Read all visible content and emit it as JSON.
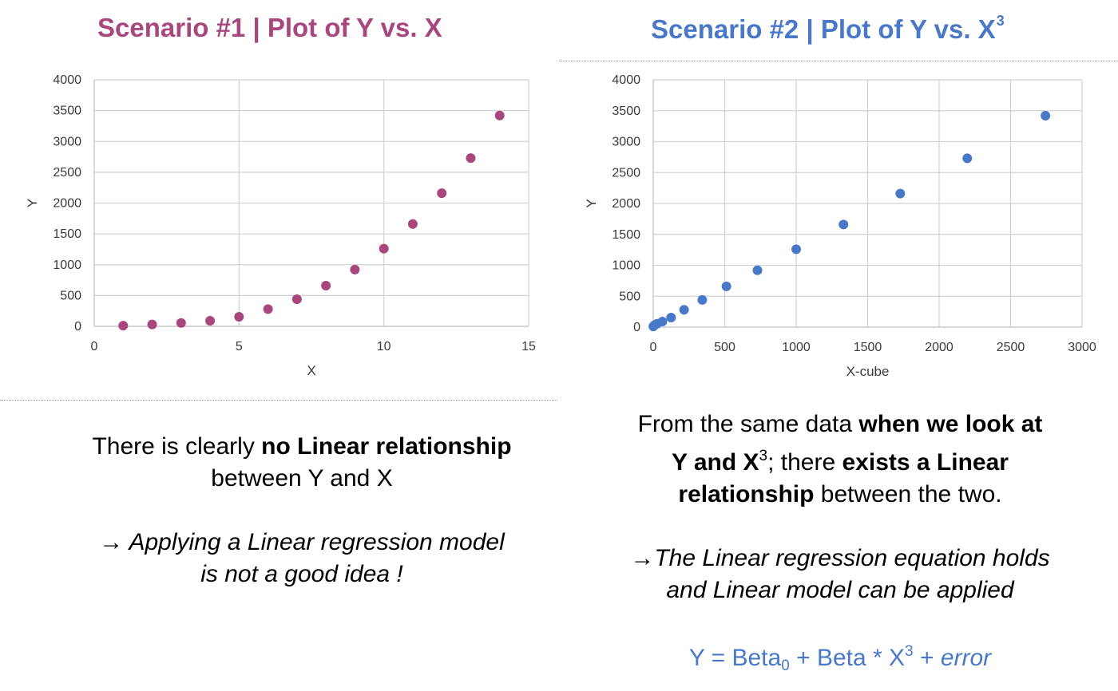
{
  "left": {
    "title": "Scenario #1 | Plot of Y vs. X",
    "text": {
      "p1_a": "There is clearly ",
      "p1_b": "no Linear relationship",
      "p1_c": "between Y and X",
      "p2_a": "→ Applying a Linear regression model",
      "p2_b": "is not a good idea !"
    }
  },
  "right": {
    "title": "Scenario #2 | Plot of Y vs. X",
    "title_sup": "3",
    "text": {
      "l1_a": "From the same data ",
      "l1_b": "when we look at",
      "l2_a": "Y and X",
      "l2_sup": "3",
      "l2_b": "; there ",
      "l2_c": "exists a Linear",
      "l3_a": "relationship",
      "l3_b": " between the two.",
      "l4": "→The Linear regression equation holds",
      "l5": "and Linear model can be applied"
    },
    "equation": {
      "a": "Y = Beta",
      "sub": "0",
      "b": " + Beta * X",
      "sup": "3",
      "c": " + ",
      "d": "error"
    }
  },
  "chart_data": [
    {
      "type": "scatter",
      "color": "#a8467e",
      "xlabel": "X",
      "ylabel": "Y",
      "xlim": [
        0,
        15
      ],
      "ylim": [
        0,
        4000
      ],
      "xticks": [
        0,
        5,
        10,
        15
      ],
      "yticks": [
        0,
        500,
        1000,
        1500,
        2000,
        2500,
        3000,
        3500,
        4000
      ],
      "grid": true,
      "x": [
        1,
        2,
        3,
        4,
        5,
        6,
        7,
        8,
        9,
        10,
        11,
        12,
        13,
        14
      ],
      "y": [
        12,
        30,
        55,
        90,
        155,
        280,
        440,
        660,
        920,
        1260,
        1660,
        2160,
        2730,
        3420
      ]
    },
    {
      "type": "scatter",
      "color": "#4a78c8",
      "xlabel": "X-cube",
      "ylabel": "Y",
      "xlim": [
        0,
        3000
      ],
      "ylim": [
        0,
        4000
      ],
      "xticks": [
        0,
        500,
        1000,
        1500,
        2000,
        2500,
        3000
      ],
      "yticks": [
        0,
        500,
        1000,
        1500,
        2000,
        2500,
        3000,
        3500,
        4000
      ],
      "grid": true,
      "x": [
        1,
        8,
        27,
        64,
        125,
        216,
        343,
        512,
        729,
        1000,
        1331,
        1728,
        2197,
        2744
      ],
      "y": [
        12,
        30,
        55,
        90,
        155,
        280,
        440,
        660,
        920,
        1260,
        1660,
        2160,
        2730,
        3420
      ]
    }
  ]
}
